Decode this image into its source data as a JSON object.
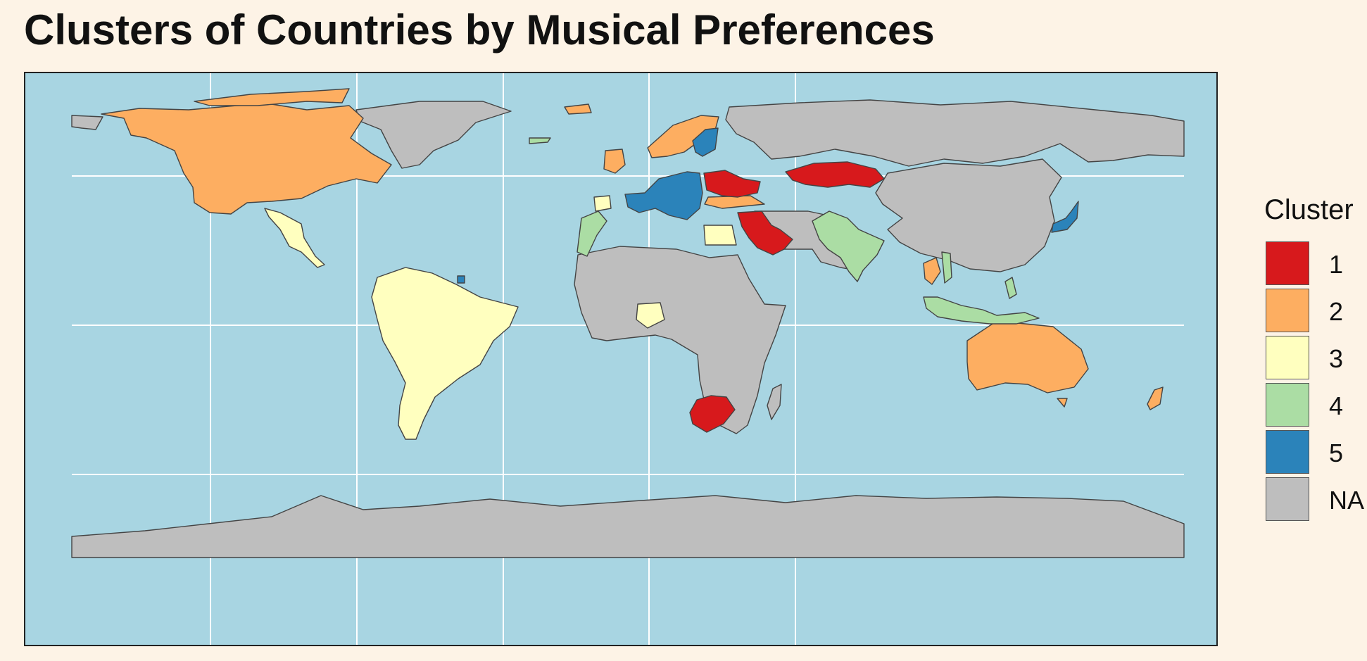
{
  "title": "Clusters of Countries by Musical Preferences",
  "legend": {
    "title": "Cluster",
    "items": [
      {
        "label": "1",
        "color": "#d7191c"
      },
      {
        "label": "2",
        "color": "#fdae61"
      },
      {
        "label": "3",
        "color": "#ffffbf"
      },
      {
        "label": "4",
        "color": "#abdda4"
      },
      {
        "label": "5",
        "color": "#2b83ba"
      },
      {
        "label": "NA",
        "color": "#bebebe"
      }
    ]
  },
  "colors": {
    "ocean": "#a8d5e2",
    "gridline": "#ffffff",
    "border": "#444444",
    "background": "#fdf3e6"
  },
  "chart_data": {
    "type": "choropleth map",
    "projection": "equirectangular",
    "grid": true,
    "legend_position": "right",
    "clusters": {
      "1": [
        "Poland",
        "Ukraine",
        "Romania",
        "Kazakhstan",
        "Saudi Arabia",
        "United Arab Emirates",
        "South Africa"
      ],
      "2": [
        "Canada",
        "United States",
        "United Kingdom",
        "Ireland",
        "Norway",
        "Finland",
        "Iceland",
        "Turkey",
        "Australia",
        "New Zealand",
        "Thailand"
      ],
      "3": [
        "Mexico",
        "Central America",
        "Brazil",
        "Argentina",
        "Chile",
        "Colombia",
        "Peru",
        "Portugal",
        "Egypt",
        "Nigeria"
      ],
      "4": [
        "India",
        "Indonesia",
        "Philippines",
        "Malaysia",
        "Vietnam",
        "Morocco",
        "Greenland (east islands)"
      ],
      "5": [
        "France",
        "Spain",
        "Germany",
        "Italy",
        "Sweden",
        "Netherlands",
        "Japan",
        "French Guiana"
      ],
      "NA": [
        "Russia",
        "China",
        "Africa (most)",
        "Middle East (most)",
        "Greenland",
        "Antarctica"
      ]
    }
  }
}
